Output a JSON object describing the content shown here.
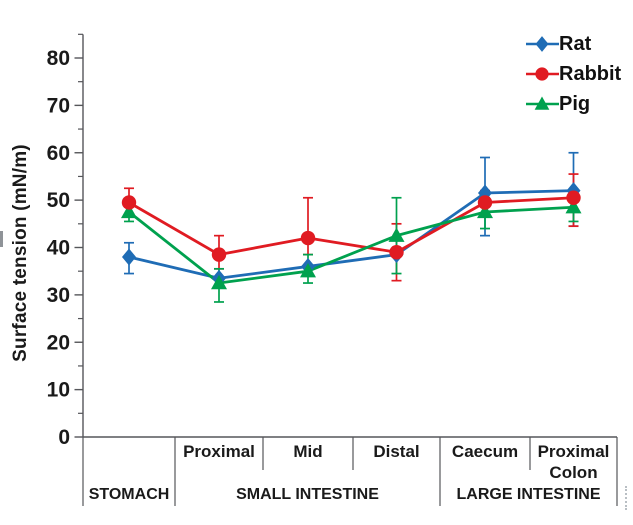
{
  "chart_data": {
    "type": "line",
    "title": "",
    "ylabel": "Surface tension (mN/m)",
    "ylim": [
      0,
      85
    ],
    "yticks_major": [
      0,
      10,
      20,
      30,
      40,
      50,
      60,
      70,
      80
    ],
    "ytick_minor_step": 5,
    "grid": false,
    "categories": [
      "",
      "Proximal",
      "Mid",
      "Distal",
      "Caecum",
      "Proximal Colon"
    ],
    "groups": [
      {
        "label": "STOMACH",
        "span": [
          0,
          1
        ]
      },
      {
        "label": "SMALL INTESTINE",
        "span": [
          1,
          4
        ]
      },
      {
        "label": "LARGE INTESTINE",
        "span": [
          4,
          6
        ]
      }
    ],
    "series": [
      {
        "name": "Rat",
        "marker": "diamond",
        "color": "#1f6cb5",
        "values": [
          38,
          33.5,
          36,
          38.5,
          51.5,
          52
        ],
        "error_lo": [
          34.5,
          null,
          null,
          null,
          42.5,
          44.5
        ],
        "error_hi": [
          41,
          null,
          null,
          null,
          59,
          60
        ]
      },
      {
        "name": "Rabbit",
        "marker": "circle",
        "color": "#e01b22",
        "values": [
          49.5,
          38.5,
          42,
          39,
          49.5,
          50.5
        ],
        "error_lo": [
          47,
          35.5,
          38.5,
          33,
          46.5,
          44.5
        ],
        "error_hi": [
          52.5,
          42.5,
          50.5,
          45,
          52,
          55.5
        ]
      },
      {
        "name": "Pig",
        "marker": "triangle",
        "color": "#00a14e",
        "values": [
          47.5,
          32.5,
          35,
          42.5,
          47.5,
          48.5
        ],
        "error_lo": [
          45.5,
          28.5,
          32.5,
          34.5,
          44,
          45.5
        ],
        "error_hi": [
          49.5,
          35.5,
          38.5,
          50.5,
          50.5,
          51.5
        ]
      }
    ],
    "legend": {
      "position": "top-right",
      "entries": [
        "Rat",
        "Rabbit",
        "Pig"
      ]
    }
  },
  "colors": {
    "axis": "#55565a",
    "text": "#1a1a1a",
    "background": "#ffffff",
    "rat": "#1f6cb5",
    "rabbit": "#e01b22",
    "pig": "#00a14e"
  }
}
